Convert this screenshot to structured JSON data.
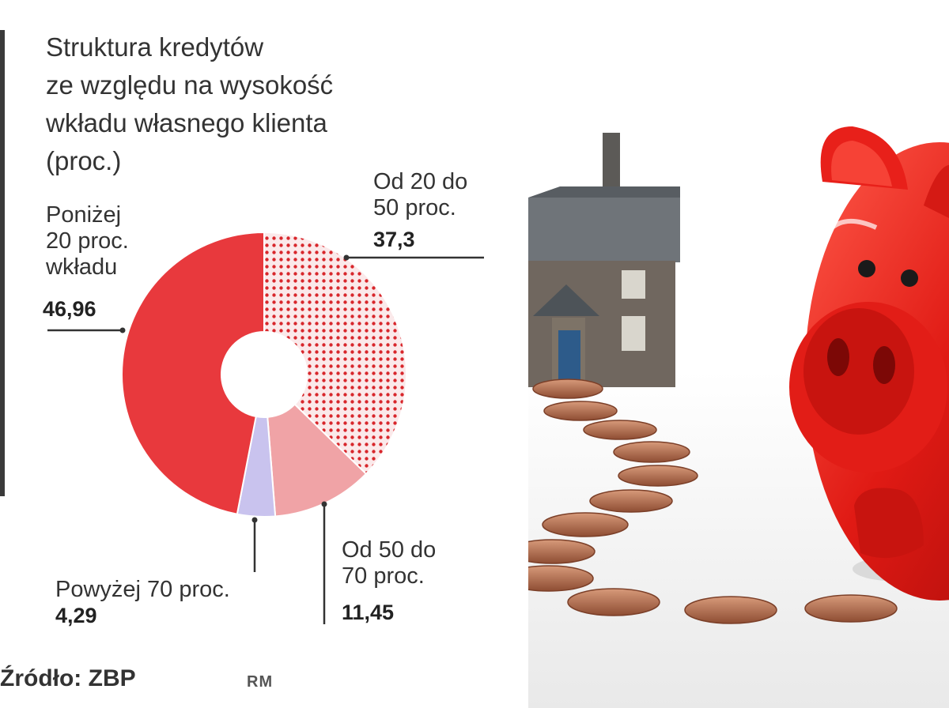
{
  "chart_data": {
    "type": "pie",
    "title": "Struktura kredytów\nze względu na wysokość\nwkładu własnego klienta\n(proc.)",
    "slices": [
      {
        "label": "Od 20 do\n50 proc.",
        "value": 37.3,
        "value_label": "37,3",
        "color": "#e03a3e",
        "pattern": "dots"
      },
      {
        "label": "Od 50 do\n70 proc.",
        "value": 11.45,
        "value_label": "11,45",
        "color": "#f0a3a6"
      },
      {
        "label": "Powyżej 70 proc.",
        "value": 4.29,
        "value_label": "4,29",
        "color": "#c9c3ee"
      },
      {
        "label": "Poniżej\n20 proc.\nwkładu",
        "value": 46.96,
        "value_label": "46,96",
        "color": "#e8393d"
      }
    ],
    "start_angle_deg": 0,
    "direction": "clockwise"
  },
  "source": "Źródło: ZBP",
  "author": "RM",
  "photo": {
    "description_icon": "house-piggybank-coins-photo"
  }
}
